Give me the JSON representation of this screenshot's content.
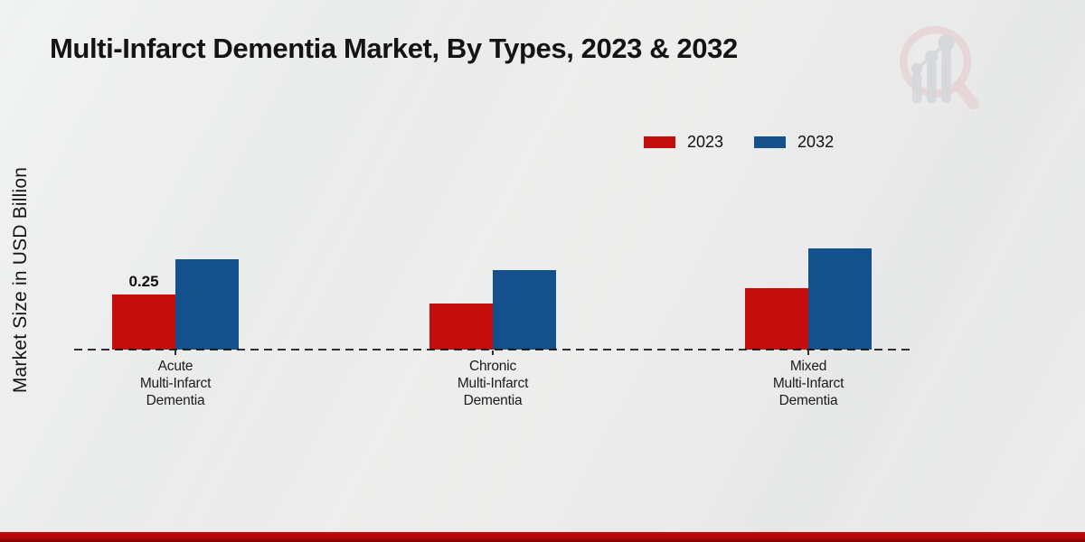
{
  "title": "Multi-Infarct Dementia Market, By Types, 2023 & 2032",
  "ylabel": "Market Size in USD Billion",
  "legend": {
    "items": [
      {
        "label": "2023",
        "color": "#c40d0d"
      },
      {
        "label": "2032",
        "color": "#13508c"
      }
    ]
  },
  "logo": {
    "name": "market-research-future-watermark"
  },
  "colors": {
    "series_2023": "#c40d0d",
    "series_2032": "#13508c",
    "footer_band": "#b20606",
    "background": "#e9eaea",
    "text": "#141414"
  },
  "chart_data": {
    "type": "bar",
    "title": "Multi-Infarct Dementia Market, By Types, 2023 & 2032",
    "xlabel": "",
    "ylabel": "Market Size in USD Billion",
    "categories": [
      "Acute\nMulti-Infarct\nDementia",
      "Chronic\nMulti-Infarct\nDementia",
      "Mixed\nMulti-Infarct\nDementia"
    ],
    "series": [
      {
        "name": "2023",
        "color": "#c40d0d",
        "values": [
          0.25,
          0.21,
          0.28
        ]
      },
      {
        "name": "2032",
        "color": "#13508c",
        "values": [
          0.41,
          0.36,
          0.46
        ]
      }
    ],
    "annotations": [
      {
        "series": 0,
        "category": 0,
        "text": "0.25"
      }
    ],
    "ylim": [
      0,
      0.5
    ],
    "grid": false,
    "legend_position": "upper-right",
    "baseline_style": "dashed",
    "y_axis_ticks_visible": false
  }
}
